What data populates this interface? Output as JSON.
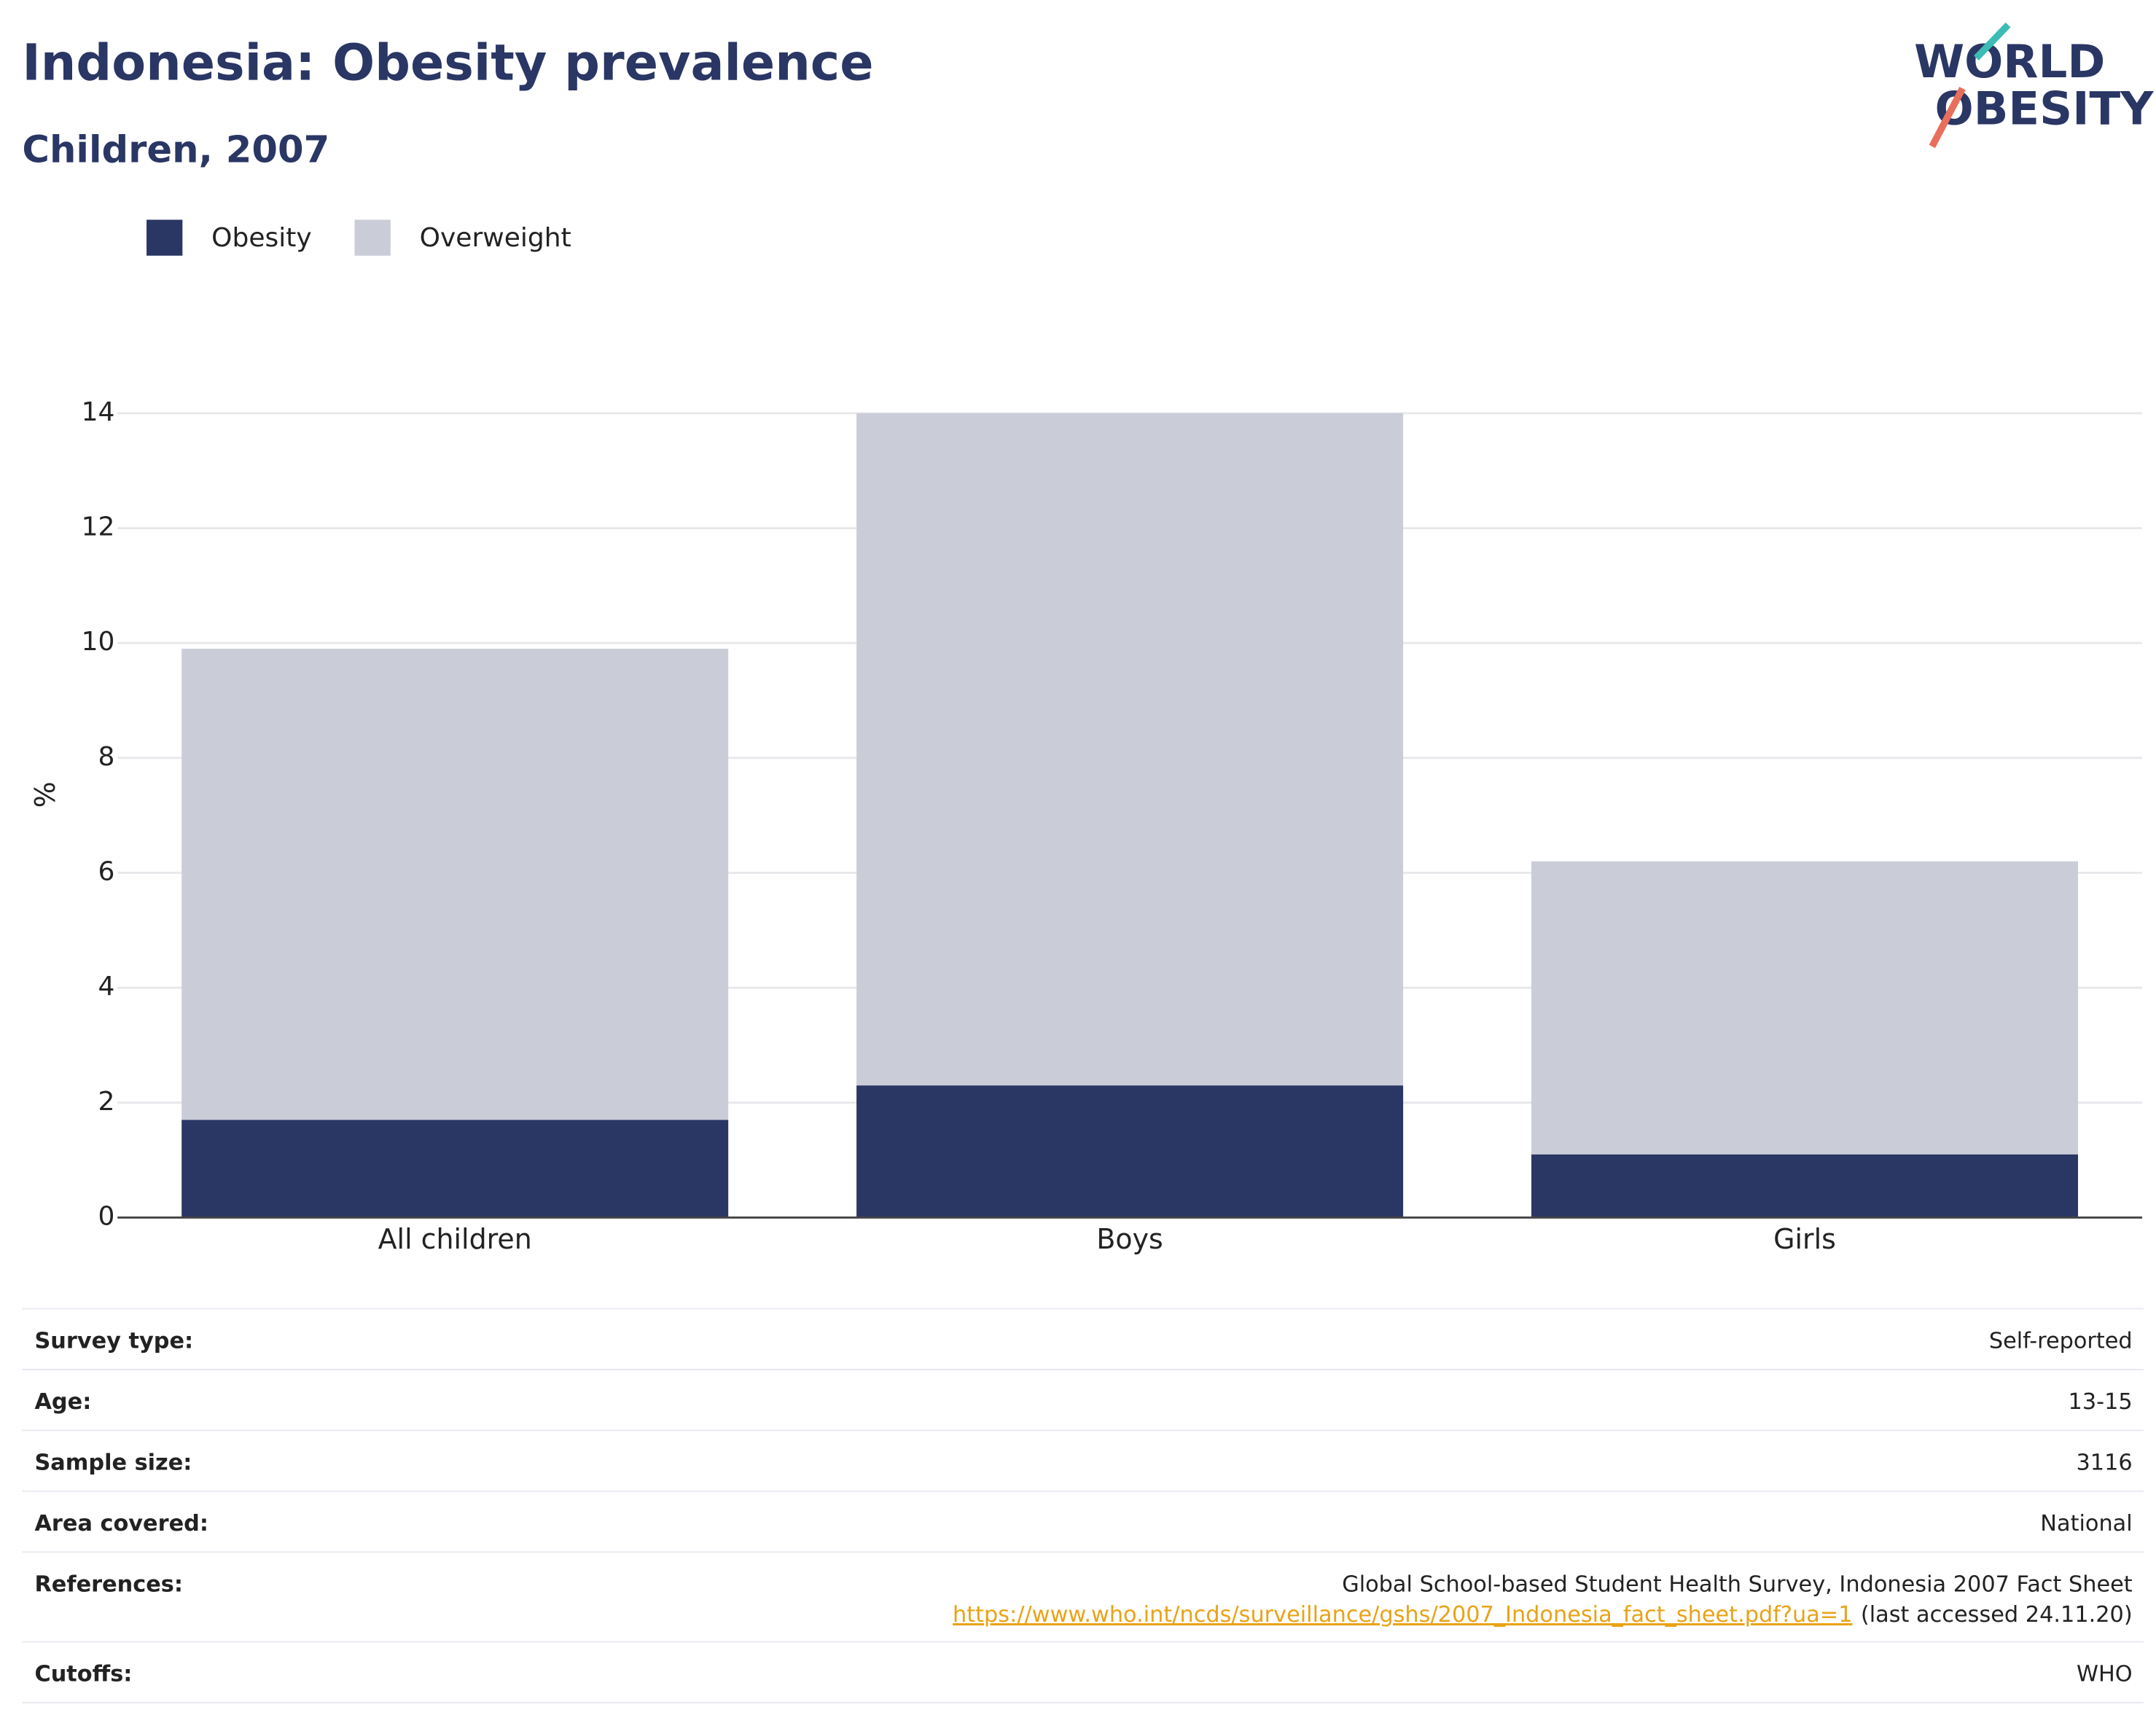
{
  "chart_data": {
    "type": "bar",
    "stacked": true,
    "title": "Indonesia: Obesity prevalence",
    "subtitle": "Children, 2007",
    "ylabel": "%",
    "categories": [
      "All children",
      "Boys",
      "Girls"
    ],
    "series": [
      {
        "name": "Obesity",
        "color": "#2a3664",
        "values": [
          1.7,
          2.3,
          1.1
        ]
      },
      {
        "name": "Overweight",
        "color": "#cacdd8",
        "values": [
          8.2,
          11.7,
          5.1
        ]
      }
    ],
    "ylim": [
      0,
      14
    ],
    "yticks": [
      0,
      2,
      4,
      6,
      8,
      10,
      12,
      14
    ],
    "grid": true,
    "legend": "top-left"
  },
  "logo": {
    "line1": "WORLD",
    "line2": "OBESITY"
  },
  "table": {
    "rows": [
      [
        "Survey type:",
        "Self-reported"
      ],
      [
        "Age:",
        "13-15"
      ],
      [
        "Sample size:",
        "3116"
      ],
      [
        "Area covered:",
        "National"
      ],
      [
        "Cutoffs:",
        "WHO"
      ]
    ],
    "references": {
      "label": "References:",
      "text": "Global School-based Student Health Survey, Indonesia 2007 Fact Sheet",
      "link": "https://www.who.int/ncds/surveillance/gshs/2007_Indonesia_fact_sheet.pdf?ua=1",
      "note": "(last accessed 24.11.20)"
    }
  }
}
